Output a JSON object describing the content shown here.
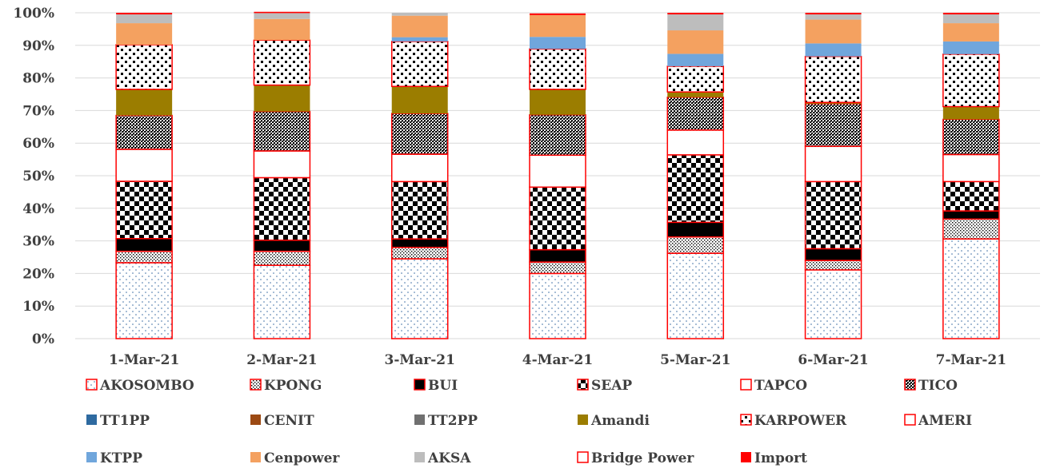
{
  "chart_data": {
    "type": "stacked-bar-100",
    "title": "",
    "xlabel": "",
    "ylabel": "",
    "ylim": [
      0,
      100
    ],
    "y_ticks": [
      "0%",
      "10%",
      "20%",
      "30%",
      "40%",
      "50%",
      "60%",
      "70%",
      "80%",
      "90%",
      "100%"
    ],
    "grid": "horizontal",
    "legend_position": "bottom",
    "categories": [
      "1-Mar-21",
      "2-Mar-21",
      "3-Mar-21",
      "4-Mar-21",
      "5-Mar-21",
      "6-Mar-21",
      "7-Mar-21"
    ],
    "series": [
      {
        "name": "AKOSOMBO",
        "color": "#ffffff",
        "pattern": "dots-blue",
        "values": [
          23.3,
          22.5,
          24.5,
          20.0,
          26.2,
          21.1,
          30.6
        ]
      },
      {
        "name": "KPONG",
        "color": "#ffffff",
        "pattern": "stipple",
        "values": [
          3.5,
          4.3,
          3.5,
          3.5,
          5.0,
          2.9,
          6.1
        ]
      },
      {
        "name": "BUI",
        "color": "#000000",
        "pattern": "solid",
        "values": [
          3.9,
          3.4,
          2.6,
          3.8,
          4.5,
          3.6,
          2.5
        ]
      },
      {
        "name": "SEAP",
        "color": "#ffffff",
        "pattern": "checker",
        "values": [
          17.6,
          19.2,
          17.6,
          19.2,
          20.7,
          20.6,
          9.0
        ]
      },
      {
        "name": "TAPCO",
        "color": "#ffffff",
        "pattern": "solid",
        "values": [
          9.8,
          8.2,
          8.4,
          9.8,
          7.6,
          10.8,
          8.3
        ]
      },
      {
        "name": "TICO",
        "color": "#ffffff",
        "pattern": "dense-dots",
        "values": [
          10.4,
          12.1,
          12.5,
          12.4,
          10.1,
          13.1,
          10.8
        ]
      },
      {
        "name": "TT1PP",
        "color": "#2e6aa0",
        "pattern": "solid",
        "values": [
          0,
          0,
          0,
          0,
          0,
          0,
          0
        ]
      },
      {
        "name": "CENIT",
        "color": "#9c4a13",
        "pattern": "solid",
        "values": [
          0,
          0,
          0,
          0,
          0,
          0,
          0
        ]
      },
      {
        "name": "TT2PP",
        "color": "#707070",
        "pattern": "solid",
        "values": [
          0,
          0,
          0,
          0,
          0,
          0,
          0
        ]
      },
      {
        "name": "Amandi",
        "color": "#9b7d00",
        "pattern": "solid",
        "values": [
          8.0,
          8.1,
          8.3,
          7.8,
          1.6,
          0.4,
          3.9
        ]
      },
      {
        "name": "KARPOWER",
        "color": "#ffffff",
        "pattern": "bold-dots",
        "values": [
          13.7,
          13.8,
          13.8,
          12.4,
          7.9,
          14.1,
          16.1
        ]
      },
      {
        "name": "AMERI",
        "color": "#ffffff",
        "pattern": "solid",
        "values": [
          0,
          0,
          0,
          0,
          0,
          0,
          0
        ]
      },
      {
        "name": "KTPP",
        "color": "#70a6dc",
        "pattern": "solid",
        "values": [
          0,
          0,
          1.3,
          3.7,
          3.8,
          4.0,
          3.9
        ]
      },
      {
        "name": "Cenpower",
        "color": "#f4a160",
        "pattern": "solid",
        "values": [
          6.6,
          6.5,
          6.6,
          6.7,
          7.2,
          7.3,
          5.6
        ]
      },
      {
        "name": "AKSA",
        "color": "#bdbdbd",
        "pattern": "solid",
        "values": [
          2.7,
          1.8,
          0.9,
          0,
          4.9,
          1.6,
          2.7
        ]
      },
      {
        "name": "Bridge Power",
        "color": "#ffffff",
        "pattern": "solid",
        "values": [
          0,
          0,
          0,
          0,
          0,
          0,
          0
        ]
      },
      {
        "name": "Import",
        "color": "#ff0000",
        "pattern": "solid",
        "values": [
          0.5,
          0.4,
          0,
          0.5,
          0.5,
          0.5,
          0.5
        ]
      }
    ]
  }
}
